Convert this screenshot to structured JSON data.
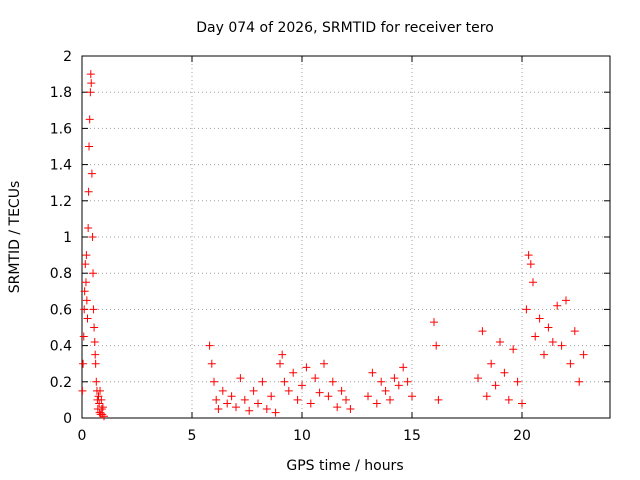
{
  "chart_data": {
    "type": "scatter",
    "title": "Day 074 of 2026, SRMTID for receiver tero",
    "xlabel": "GPS time / hours",
    "ylabel": "SRMTID / TECUs",
    "xlim": [
      0,
      24
    ],
    "ylim": [
      0,
      2
    ],
    "xticks": [
      0,
      5,
      10,
      15,
      20
    ],
    "xtick_labels": [
      "0",
      "5",
      "10",
      "15",
      "20"
    ],
    "yticks": [
      0,
      0.2,
      0.4,
      0.6,
      0.8,
      1,
      1.2,
      1.4,
      1.6,
      1.8,
      2
    ],
    "ytick_labels": [
      "0",
      "0.2",
      "0.4",
      "0.6",
      "0.8",
      "1",
      "1.2",
      "1.4",
      "1.6",
      "1.8",
      "2"
    ],
    "grid": true,
    "marker": "plus",
    "color": "#ff0000",
    "series": [
      {
        "name": "SRMTID",
        "x": [
          0.02,
          0.05,
          0.08,
          0.1,
          0.12,
          0.15,
          0.18,
          0.2,
          0.22,
          0.25,
          0.28,
          0.3,
          0.32,
          0.35,
          0.38,
          0.4,
          0.42,
          0.45,
          0.48,
          0.5,
          0.52,
          0.55,
          0.58,
          0.6,
          0.62,
          0.65,
          0.68,
          0.7,
          0.72,
          0.75,
          0.78,
          0.8,
          0.82,
          0.85,
          0.88,
          0.9,
          0.92,
          0.95,
          1.0,
          5.8,
          5.9,
          6.0,
          6.1,
          6.2,
          6.4,
          6.6,
          6.8,
          7.0,
          7.2,
          7.4,
          7.6,
          7.8,
          8.0,
          8.2,
          8.4,
          8.6,
          8.8,
          9.0,
          9.1,
          9.2,
          9.4,
          9.6,
          9.8,
          10.0,
          10.2,
          10.4,
          10.6,
          10.8,
          11.0,
          11.2,
          11.4,
          11.6,
          11.8,
          12.0,
          12.2,
          13.0,
          13.2,
          13.4,
          13.6,
          13.8,
          14.0,
          14.2,
          14.4,
          14.6,
          14.8,
          15.0,
          16.0,
          16.1,
          16.2,
          18.0,
          18.2,
          18.4,
          18.6,
          18.8,
          19.0,
          19.2,
          19.4,
          19.6,
          19.8,
          20.0,
          20.2,
          20.3,
          20.4,
          20.5,
          20.6,
          20.8,
          21.0,
          21.2,
          21.4,
          21.6,
          21.8,
          22.0,
          22.2,
          22.4,
          22.6,
          22.8
        ],
        "y": [
          0.15,
          0.3,
          0.45,
          0.6,
          0.7,
          0.85,
          0.75,
          0.9,
          0.65,
          0.55,
          1.05,
          1.25,
          1.5,
          1.65,
          1.8,
          1.9,
          1.85,
          1.35,
          1.0,
          0.8,
          0.6,
          0.5,
          0.42,
          0.35,
          0.3,
          0.2,
          0.15,
          0.1,
          0.05,
          0.12,
          0.08,
          0.03,
          0.15,
          0.02,
          0.1,
          0.05,
          0.02,
          0.06,
          0.01,
          0.4,
          0.3,
          0.2,
          0.1,
          0.05,
          0.15,
          0.08,
          0.12,
          0.06,
          0.22,
          0.1,
          0.04,
          0.15,
          0.08,
          0.2,
          0.05,
          0.12,
          0.03,
          0.3,
          0.35,
          0.2,
          0.15,
          0.25,
          0.1,
          0.18,
          0.28,
          0.08,
          0.22,
          0.14,
          0.3,
          0.12,
          0.2,
          0.06,
          0.15,
          0.1,
          0.05,
          0.12,
          0.25,
          0.08,
          0.2,
          0.15,
          0.1,
          0.22,
          0.18,
          0.28,
          0.2,
          0.12,
          0.53,
          0.4,
          0.1,
          0.22,
          0.48,
          0.12,
          0.3,
          0.18,
          0.42,
          0.25,
          0.1,
          0.38,
          0.2,
          0.08,
          0.6,
          0.9,
          0.85,
          0.75,
          0.45,
          0.55,
          0.35,
          0.5,
          0.42,
          0.62,
          0.4,
          0.65,
          0.3,
          0.48,
          0.2,
          0.35
        ]
      }
    ]
  }
}
